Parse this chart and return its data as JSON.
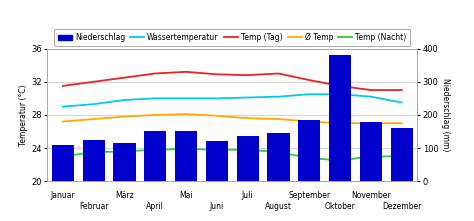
{
  "months": [
    "Januar",
    "Februar",
    "März",
    "April",
    "Mai",
    "Juni",
    "Juli",
    "August",
    "September",
    "Oktober",
    "November",
    "Dezember"
  ],
  "niederschlag": [
    110,
    125,
    115,
    150,
    150,
    120,
    135,
    145,
    185,
    380,
    180,
    160
  ],
  "wassertemperatur": [
    29.0,
    29.3,
    29.8,
    30.0,
    30.0,
    30.0,
    30.1,
    30.2,
    30.5,
    30.5,
    30.2,
    29.5
  ],
  "temp_tag": [
    31.5,
    32.0,
    32.5,
    33.0,
    33.2,
    32.9,
    32.8,
    33.0,
    32.2,
    31.5,
    31.0,
    31.0
  ],
  "avg_temp": [
    27.2,
    27.5,
    27.8,
    28.0,
    28.1,
    27.9,
    27.6,
    27.5,
    27.2,
    27.0,
    27.0,
    27.0
  ],
  "temp_nacht": [
    23.0,
    23.5,
    23.6,
    23.8,
    23.9,
    23.8,
    23.8,
    23.5,
    22.8,
    22.5,
    23.0,
    23.0
  ],
  "bar_color": "#0000cc",
  "wassertemp_color": "#00ccee",
  "temp_tag_color": "#ee2222",
  "avg_temp_color": "#ffaa00",
  "temp_nacht_color": "#33cc33",
  "ylim_left": [
    20,
    36
  ],
  "ylim_right": [
    0,
    400
  ],
  "yticks_left": [
    20,
    24,
    28,
    32,
    36
  ],
  "yticks_right": [
    0,
    100,
    200,
    300,
    400
  ],
  "ylabel_left": "Temperatur (°C)",
  "ylabel_right": "Niederschlag (mm)",
  "legend_labels": [
    "Niederschlag",
    "Wassertemperatur",
    "Temp (Tag)",
    "Ø Temp",
    "Temp (Nacht)"
  ],
  "background_color": "#ffffff",
  "grid_color": "#cccccc",
  "figsize": [
    4.74,
    2.21
  ],
  "dpi": 100
}
